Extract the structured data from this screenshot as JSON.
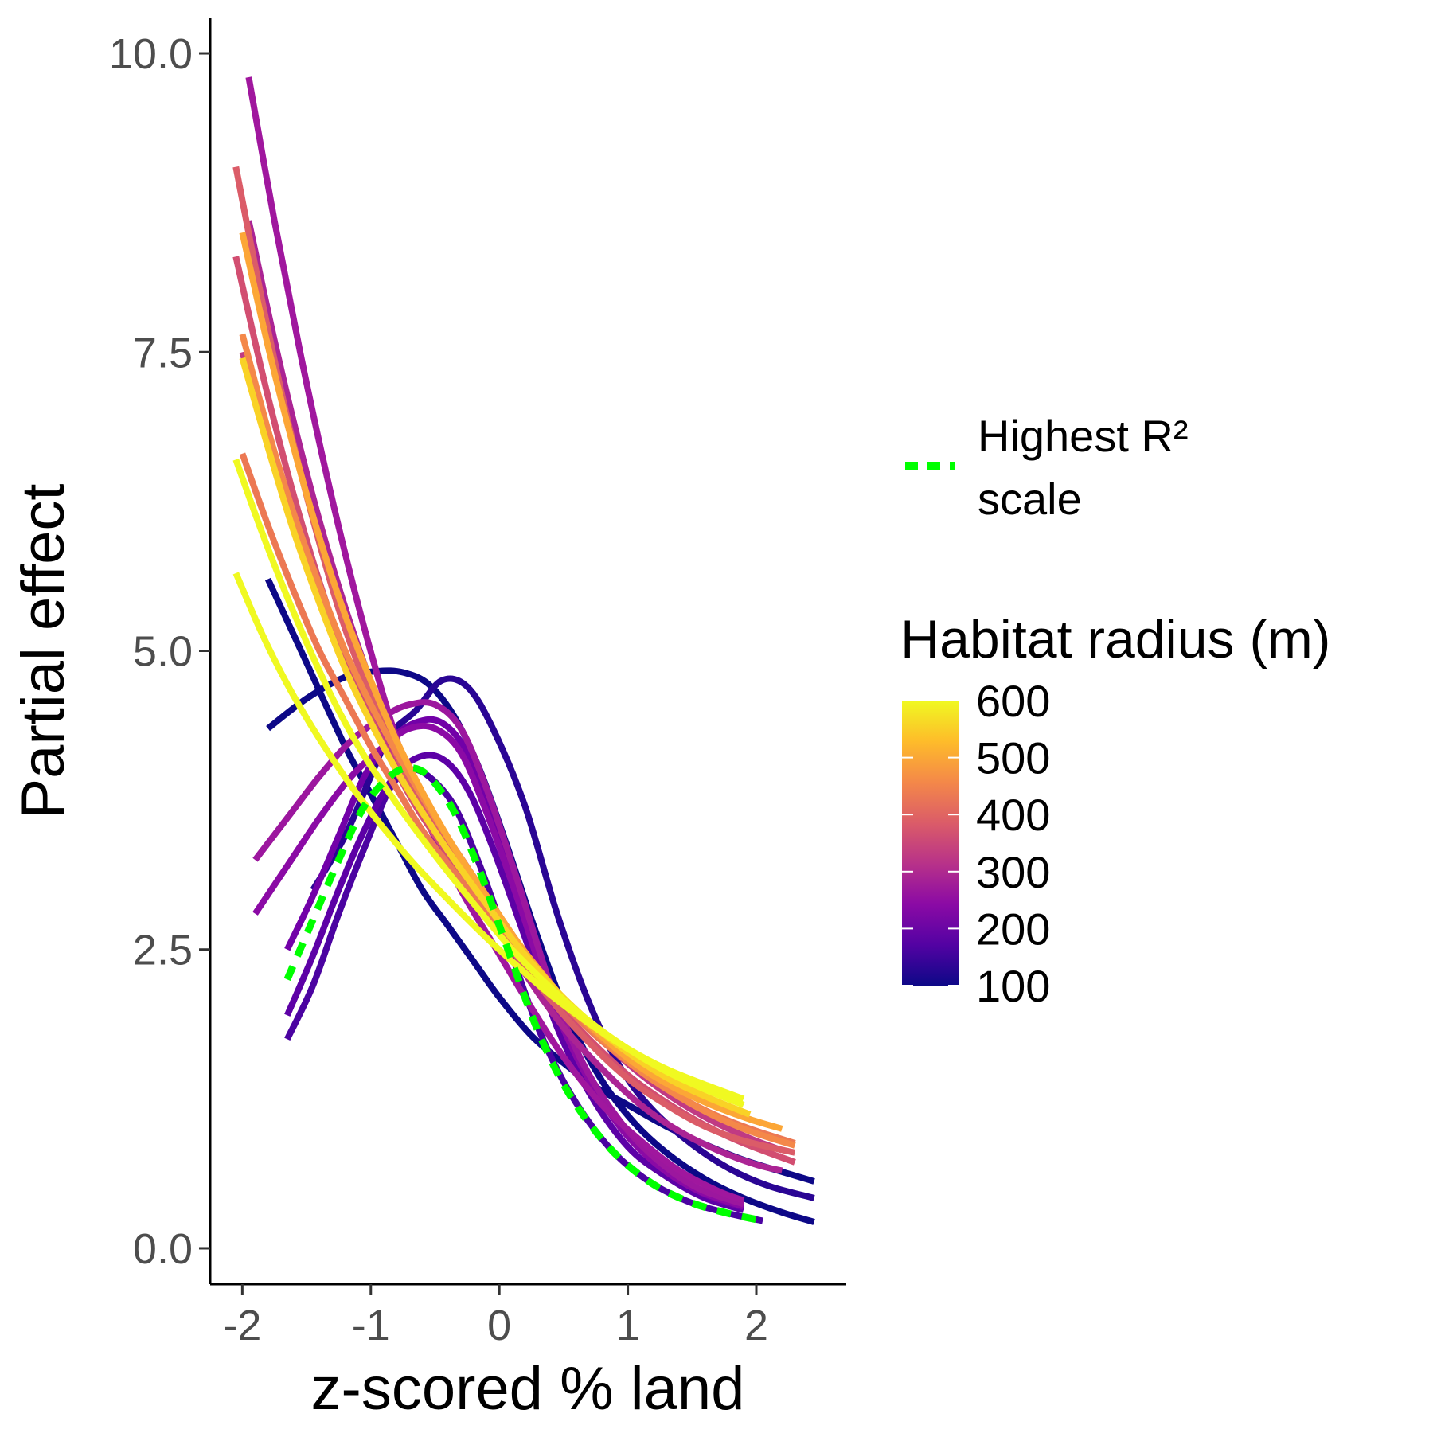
{
  "chart_data": {
    "type": "line",
    "xlabel": "z-scored % land",
    "ylabel": "Partial effect",
    "xlim": [
      -2.25,
      2.7
    ],
    "ylim": [
      -0.3,
      10.3
    ],
    "x_ticks": [
      -2,
      -1,
      0,
      1,
      2
    ],
    "x_tick_labels": [
      "-2",
      "-1",
      "0",
      "1",
      "2"
    ],
    "y_ticks": [
      0,
      2.5,
      5,
      7.5,
      10
    ],
    "y_tick_labels": [
      "0.0",
      "2.5",
      "5.0",
      "7.5",
      "10.0"
    ],
    "grid": false,
    "legend": {
      "placement": "right",
      "line_label": "Highest R² scale",
      "line_label_lines": [
        "Highest R²",
        "scale"
      ],
      "line_color": "#00ff00",
      "colorbar_title": "Habitat radius (m)",
      "colorbar_ticks": [
        100,
        200,
        300,
        400,
        500,
        600
      ],
      "colorbar_tick_labels": [
        "100",
        "200",
        "300",
        "400",
        "500",
        "600"
      ],
      "colorbar_range": [
        100,
        600
      ],
      "palette": [
        "#0d0887",
        "#5302a3",
        "#8b0aa5",
        "#b83289",
        "#db5c68",
        "#f48849",
        "#febc2a",
        "#f0f921"
      ]
    },
    "series": [
      {
        "color": "#0d0887",
        "x": [
          -1.8,
          -1.5,
          -1.2,
          -0.95,
          -0.75,
          -0.55,
          -0.35,
          -0.15,
          0.05,
          0.3,
          0.55,
          0.8,
          1.05,
          1.3,
          1.6,
          1.9,
          2.2,
          2.45
        ],
        "y": [
          4.35,
          4.6,
          4.78,
          4.83,
          4.82,
          4.72,
          4.45,
          4.0,
          3.4,
          2.6,
          1.9,
          1.4,
          1.05,
          0.8,
          0.58,
          0.42,
          0.3,
          0.22
        ]
      },
      {
        "color": "#0d0887",
        "x": [
          -1.8,
          -1.5,
          -1.2,
          -1.0,
          -0.8,
          -0.6,
          -0.4,
          -0.2,
          0.0,
          0.25,
          0.5,
          0.75,
          1.0,
          1.3,
          1.6,
          1.9,
          2.2,
          2.45
        ],
        "y": [
          5.6,
          4.9,
          4.2,
          3.8,
          3.4,
          3.0,
          2.7,
          2.4,
          2.1,
          1.78,
          1.55,
          1.35,
          1.2,
          1.02,
          0.87,
          0.74,
          0.64,
          0.56
        ]
      },
      {
        "color": "#2a0594",
        "x": [
          -1.45,
          -1.2,
          -1.0,
          -0.85,
          -0.65,
          -0.45,
          -0.25,
          -0.05,
          0.2,
          0.45,
          0.7,
          0.95,
          1.2,
          1.5,
          1.8,
          2.1,
          2.45
        ],
        "y": [
          3.0,
          3.45,
          3.95,
          4.3,
          4.5,
          4.75,
          4.7,
          4.35,
          3.7,
          2.8,
          2.05,
          1.5,
          1.15,
          0.87,
          0.66,
          0.52,
          0.42
        ]
      },
      {
        "color": "#4b03a1",
        "x": [
          -1.65,
          -1.45,
          -1.25,
          -1.05,
          -0.85,
          -0.7,
          -0.55,
          -0.35,
          -0.15,
          0.05,
          0.3,
          0.55,
          0.85,
          1.15,
          1.45,
          1.75,
          2.05
        ],
        "y": [
          1.75,
          2.2,
          2.8,
          3.35,
          3.85,
          4.0,
          3.95,
          3.7,
          3.2,
          2.6,
          1.85,
          1.3,
          0.85,
          0.57,
          0.4,
          0.3,
          0.23
        ]
      },
      {
        "color": "#5d01a6",
        "x": [
          -1.65,
          -1.45,
          -1.25,
          -1.05,
          -0.85,
          -0.65,
          -0.45,
          -0.25,
          -0.05,
          0.2,
          0.45,
          0.7,
          1.0,
          1.3,
          1.6,
          1.9
        ],
        "y": [
          1.95,
          2.45,
          3.0,
          3.5,
          3.9,
          4.1,
          4.1,
          3.85,
          3.35,
          2.6,
          1.85,
          1.3,
          0.85,
          0.6,
          0.42,
          0.32
        ]
      },
      {
        "color": "#7201a8",
        "x": [
          -1.65,
          -1.45,
          -1.25,
          -1.05,
          -0.85,
          -0.65,
          -0.45,
          -0.25,
          -0.05,
          0.2,
          0.45,
          0.7,
          1.0,
          1.3,
          1.6,
          1.9
        ],
        "y": [
          2.5,
          2.95,
          3.45,
          3.95,
          4.25,
          4.4,
          4.4,
          4.15,
          3.6,
          2.8,
          2.0,
          1.42,
          0.95,
          0.65,
          0.45,
          0.34
        ]
      },
      {
        "color": "#8b0aa5",
        "x": [
          -1.9,
          -1.65,
          -1.4,
          -1.15,
          -0.9,
          -0.7,
          -0.5,
          -0.3,
          -0.1,
          0.15,
          0.4,
          0.65,
          0.95,
          1.25,
          1.55,
          1.9
        ],
        "y": [
          2.8,
          3.2,
          3.6,
          3.95,
          4.2,
          4.35,
          4.35,
          4.15,
          3.65,
          2.9,
          2.1,
          1.5,
          1.0,
          0.68,
          0.48,
          0.35
        ]
      },
      {
        "color": "#9c179e",
        "x": [
          -1.9,
          -1.65,
          -1.4,
          -1.15,
          -0.9,
          -0.7,
          -0.5,
          -0.3,
          -0.1,
          0.15,
          0.4,
          0.65,
          0.95,
          1.25,
          1.55,
          1.9
        ],
        "y": [
          3.25,
          3.6,
          3.95,
          4.25,
          4.45,
          4.55,
          4.55,
          4.35,
          3.85,
          3.05,
          2.2,
          1.55,
          1.05,
          0.72,
          0.5,
          0.37
        ]
      },
      {
        "color": "#a0179e",
        "x": [
          -1.95,
          -1.75,
          -1.55,
          -1.35,
          -1.15,
          -0.95,
          -0.75,
          -0.55,
          -0.3,
          -0.05,
          0.2,
          0.5,
          0.8,
          1.1,
          1.4,
          1.7,
          1.9
        ],
        "y": [
          9.8,
          8.6,
          7.5,
          6.5,
          5.6,
          4.8,
          4.1,
          3.55,
          3.0,
          2.55,
          2.1,
          1.6,
          1.2,
          0.9,
          0.65,
          0.48,
          0.4
        ]
      },
      {
        "color": "#ab2494",
        "x": [
          -1.95,
          -1.75,
          -1.55,
          -1.35,
          -1.15,
          -0.95,
          -0.75,
          -0.55,
          -0.3,
          -0.05,
          0.2,
          0.5,
          0.8,
          1.1,
          1.4,
          1.7,
          2.0,
          2.2
        ],
        "y": [
          8.6,
          7.6,
          6.7,
          5.9,
          5.2,
          4.6,
          4.1,
          3.65,
          3.2,
          2.75,
          2.3,
          1.85,
          1.5,
          1.2,
          0.98,
          0.82,
          0.7,
          0.65
        ]
      },
      {
        "color": "#c03a83",
        "x": [
          -2.0,
          -1.8,
          -1.6,
          -1.4,
          -1.2,
          -1.0,
          -0.8,
          -0.6,
          -0.35,
          -0.1,
          0.15,
          0.45,
          0.75,
          1.05,
          1.35,
          1.65,
          1.95,
          2.2
        ],
        "y": [
          7.5,
          6.75,
          6.05,
          5.45,
          4.95,
          4.5,
          4.1,
          3.75,
          3.35,
          2.95,
          2.55,
          2.15,
          1.8,
          1.5,
          1.26,
          1.07,
          0.92,
          0.82
        ]
      },
      {
        "color": "#d24e71",
        "x": [
          -2.05,
          -1.85,
          -1.65,
          -1.45,
          -1.25,
          -1.05,
          -0.85,
          -0.65,
          -0.4,
          -0.15,
          0.1,
          0.4,
          0.7,
          1.0,
          1.3,
          1.6,
          1.9,
          2.3
        ],
        "y": [
          8.3,
          7.35,
          6.5,
          5.75,
          5.1,
          4.55,
          4.1,
          3.7,
          3.3,
          2.9,
          2.5,
          2.1,
          1.75,
          1.45,
          1.22,
          1.03,
          0.88,
          0.72
        ]
      },
      {
        "color": "#db5c68",
        "x": [
          -2.05,
          -1.85,
          -1.65,
          -1.45,
          -1.25,
          -1.05,
          -0.85,
          -0.65,
          -0.4,
          -0.15,
          0.1,
          0.4,
          0.7,
          1.0,
          1.3,
          1.6,
          1.9,
          2.3
        ],
        "y": [
          9.05,
          7.95,
          6.95,
          6.1,
          5.35,
          4.75,
          4.25,
          3.8,
          3.35,
          2.92,
          2.5,
          2.08,
          1.72,
          1.42,
          1.2,
          1.02,
          0.9,
          0.8
        ]
      },
      {
        "color": "#ec7853",
        "x": [
          -2.0,
          -1.8,
          -1.6,
          -1.4,
          -1.2,
          -1.0,
          -0.8,
          -0.6,
          -0.35,
          -0.1,
          0.15,
          0.45,
          0.75,
          1.05,
          1.35,
          1.65,
          1.95,
          2.3
        ],
        "y": [
          6.65,
          6.05,
          5.5,
          5.0,
          4.6,
          4.2,
          3.85,
          3.5,
          3.15,
          2.8,
          2.45,
          2.1,
          1.78,
          1.52,
          1.3,
          1.13,
          1.0,
          0.88
        ]
      },
      {
        "color": "#f48849",
        "x": [
          -2.0,
          -1.8,
          -1.6,
          -1.4,
          -1.2,
          -1.0,
          -0.8,
          -0.6,
          -0.35,
          -0.1,
          0.15,
          0.45,
          0.75,
          1.05,
          1.35,
          1.65,
          1.95,
          2.3
        ],
        "y": [
          7.65,
          6.85,
          6.15,
          5.55,
          5.0,
          4.55,
          4.15,
          3.78,
          3.35,
          2.95,
          2.55,
          2.15,
          1.8,
          1.52,
          1.3,
          1.12,
          0.98,
          0.86
        ]
      },
      {
        "color": "#fca636",
        "x": [
          -2.0,
          -1.8,
          -1.6,
          -1.4,
          -1.2,
          -1.0,
          -0.8,
          -0.6,
          -0.35,
          -0.1,
          0.15,
          0.45,
          0.75,
          1.05,
          1.35,
          1.65,
          1.95,
          2.2
        ],
        "y": [
          8.5,
          7.55,
          6.7,
          5.95,
          5.3,
          4.75,
          4.25,
          3.82,
          3.35,
          2.95,
          2.55,
          2.15,
          1.82,
          1.55,
          1.35,
          1.2,
          1.08,
          1.0
        ]
      },
      {
        "color": "#f9d226",
        "x": [
          -2.0,
          -1.8,
          -1.6,
          -1.4,
          -1.2,
          -1.0,
          -0.8,
          -0.6,
          -0.35,
          -0.1,
          0.15,
          0.45,
          0.75,
          1.05,
          1.35,
          1.65,
          1.95
        ],
        "y": [
          7.45,
          6.7,
          6.0,
          5.4,
          4.85,
          4.4,
          4.0,
          3.65,
          3.25,
          2.88,
          2.52,
          2.15,
          1.85,
          1.6,
          1.4,
          1.25,
          1.12
        ]
      },
      {
        "color": "#f0f921",
        "x": [
          -2.05,
          -1.85,
          -1.65,
          -1.45,
          -1.25,
          -1.05,
          -0.85,
          -0.65,
          -0.4,
          -0.15,
          0.1,
          0.4,
          0.7,
          1.0,
          1.3,
          1.6,
          1.9
        ],
        "y": [
          6.6,
          6.0,
          5.45,
          4.95,
          4.5,
          4.12,
          3.8,
          3.5,
          3.15,
          2.82,
          2.5,
          2.18,
          1.9,
          1.67,
          1.48,
          1.33,
          1.2
        ]
      },
      {
        "color": "#f0f921",
        "x": [
          -2.05,
          -1.85,
          -1.65,
          -1.45,
          -1.25,
          -1.05,
          -0.85,
          -0.65,
          -0.4,
          -0.15,
          0.1,
          0.4,
          0.7,
          1.0,
          1.3,
          1.6,
          1.9
        ],
        "y": [
          5.65,
          5.15,
          4.72,
          4.35,
          4.02,
          3.72,
          3.45,
          3.2,
          2.92,
          2.65,
          2.4,
          2.12,
          1.88,
          1.67,
          1.5,
          1.37,
          1.25
        ]
      },
      {
        "color": "#00ff00",
        "dashed": true,
        "x": [
          -1.65,
          -1.45,
          -1.25,
          -1.05,
          -0.85,
          -0.7,
          -0.55,
          -0.35,
          -0.15,
          0.05,
          0.3,
          0.55,
          0.85,
          1.15,
          1.45,
          1.75,
          2.05
        ],
        "y": [
          2.25,
          2.75,
          3.25,
          3.7,
          3.95,
          4.02,
          3.95,
          3.65,
          3.15,
          2.55,
          1.82,
          1.28,
          0.85,
          0.57,
          0.4,
          0.3,
          0.23
        ]
      }
    ]
  }
}
